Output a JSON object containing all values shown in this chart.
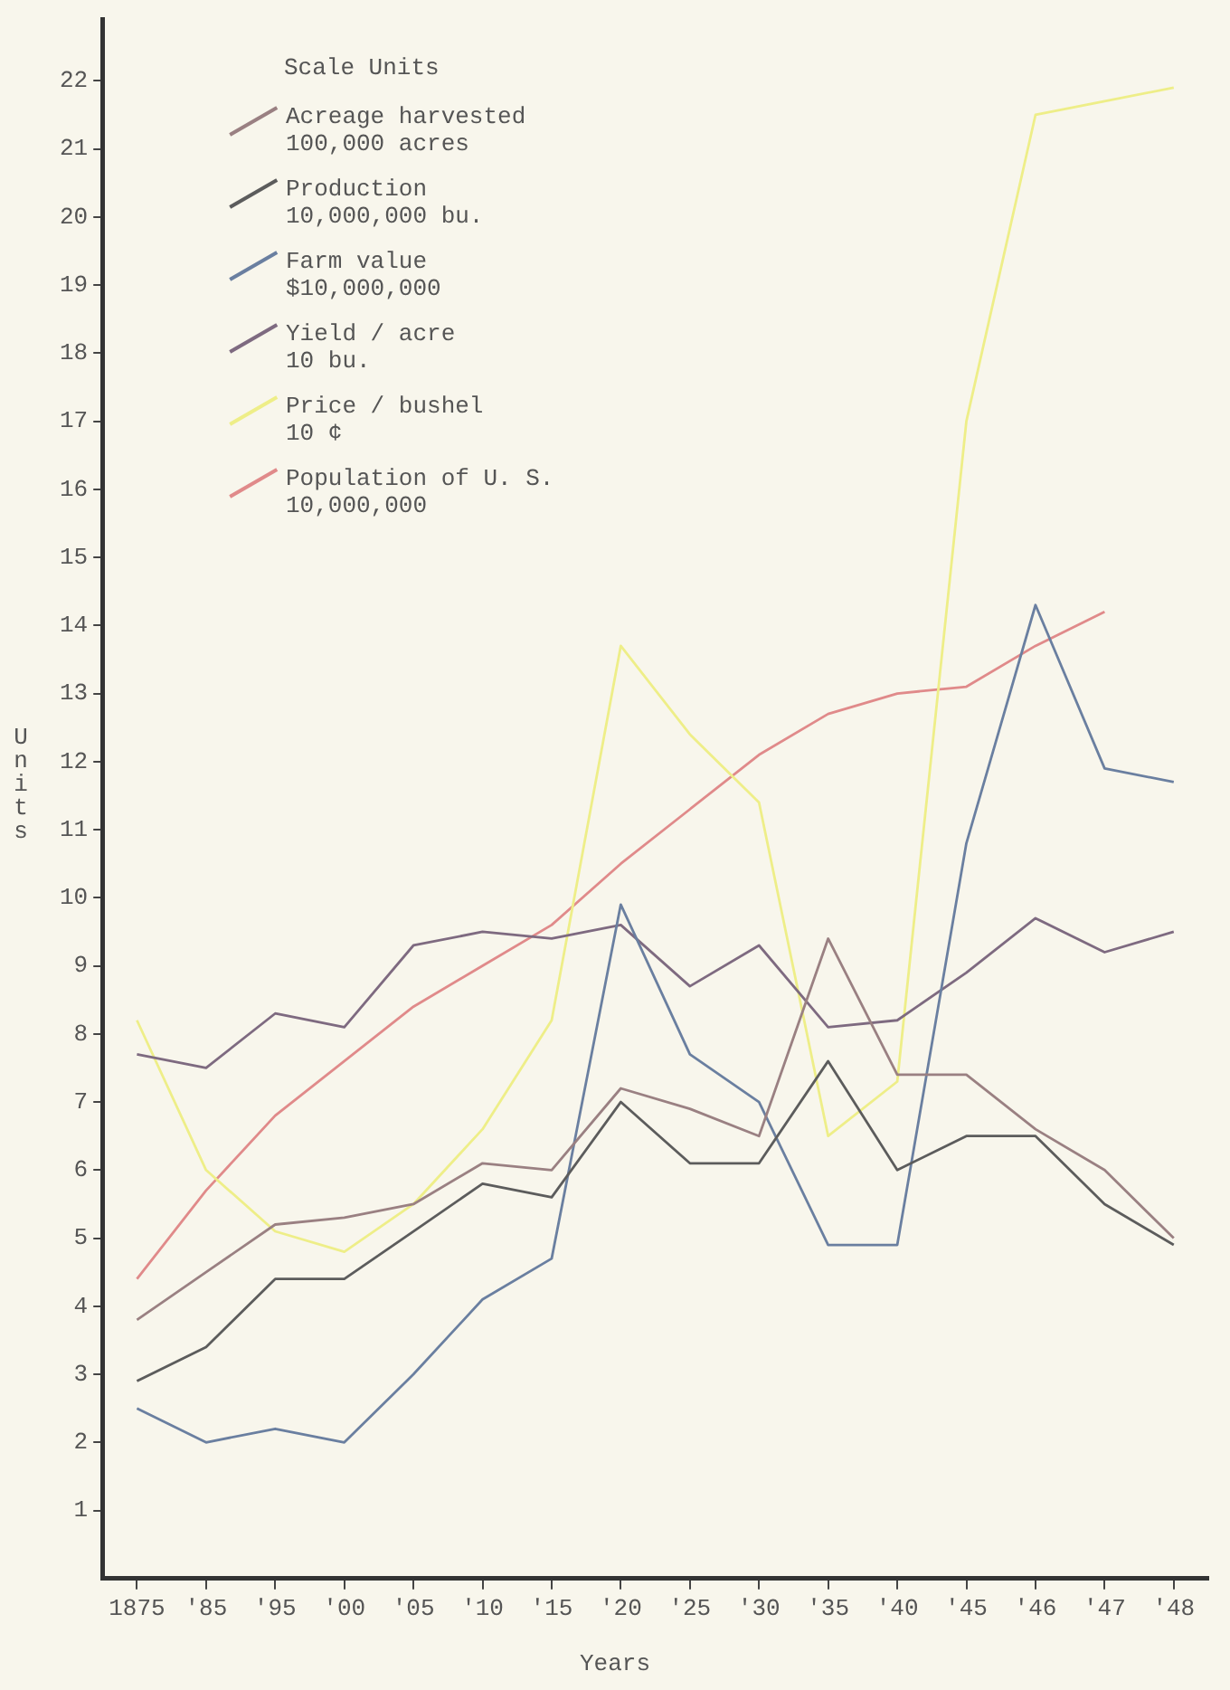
{
  "chart_data": {
    "type": "line",
    "xlabel": "Years",
    "ylabel": "Units",
    "legend_title": "Scale Units",
    "legend": "top left",
    "grid": false,
    "marker": "none",
    "line_style": "solid",
    "categories": [
      "1875",
      "'85",
      "'95",
      "'00",
      "'05",
      "'10",
      "'15",
      "'20",
      "'25",
      "'30",
      "'35",
      "'40",
      "'45",
      "'46",
      "'47",
      "'48"
    ],
    "ylim": [
      0,
      22.9
    ],
    "yticks": [
      1,
      2,
      3,
      4,
      5,
      6,
      7,
      8,
      9,
      10,
      11,
      12,
      13,
      14,
      15,
      16,
      17,
      18,
      19,
      20,
      21,
      22
    ],
    "series": [
      {
        "name": "Acreage harvested\n100,000 acres",
        "color": "#9a8082",
        "values": [
          3.8,
          4.5,
          5.2,
          5.3,
          5.5,
          6.1,
          6.0,
          7.2,
          6.9,
          6.5,
          9.4,
          7.4,
          7.4,
          6.6,
          6.0,
          5.0
        ]
      },
      {
        "name": "Production\n10,000,000 bu.",
        "color": "#5c5c5c",
        "values": [
          2.9,
          3.4,
          4.4,
          4.4,
          5.1,
          5.8,
          5.6,
          7.0,
          6.1,
          6.1,
          7.6,
          6.0,
          6.5,
          6.5,
          5.5,
          4.9
        ]
      },
      {
        "name": "Farm value\n$10,000,000",
        "color": "#6a7fa0",
        "values": [
          2.5,
          2.0,
          2.2,
          2.0,
          3.0,
          4.1,
          4.7,
          9.9,
          7.7,
          7.0,
          4.9,
          4.9,
          10.8,
          14.3,
          11.9,
          11.7
        ]
      },
      {
        "name": "Yield / acre\n10 bu.",
        "color": "#7e6a80",
        "values": [
          7.7,
          7.5,
          8.3,
          8.1,
          9.3,
          9.5,
          9.4,
          9.6,
          8.7,
          9.3,
          8.1,
          8.2,
          8.9,
          9.7,
          9.2,
          9.5
        ]
      },
      {
        "name": "Price / bushel\n10 ¢",
        "color": "#eeee88",
        "values": [
          8.2,
          6.0,
          5.1,
          4.8,
          5.5,
          6.6,
          8.2,
          13.7,
          12.4,
          11.4,
          6.5,
          7.3,
          17.0,
          21.5,
          21.7,
          21.9
        ]
      },
      {
        "name": "Population of U. S.\n10,000,000",
        "color": "#e08a8a",
        "values": [
          4.4,
          5.7,
          6.8,
          7.6,
          8.4,
          9.0,
          9.6,
          10.5,
          11.3,
          12.1,
          12.7,
          13.0,
          13.1,
          13.7,
          14.2,
          null
        ]
      }
    ]
  }
}
